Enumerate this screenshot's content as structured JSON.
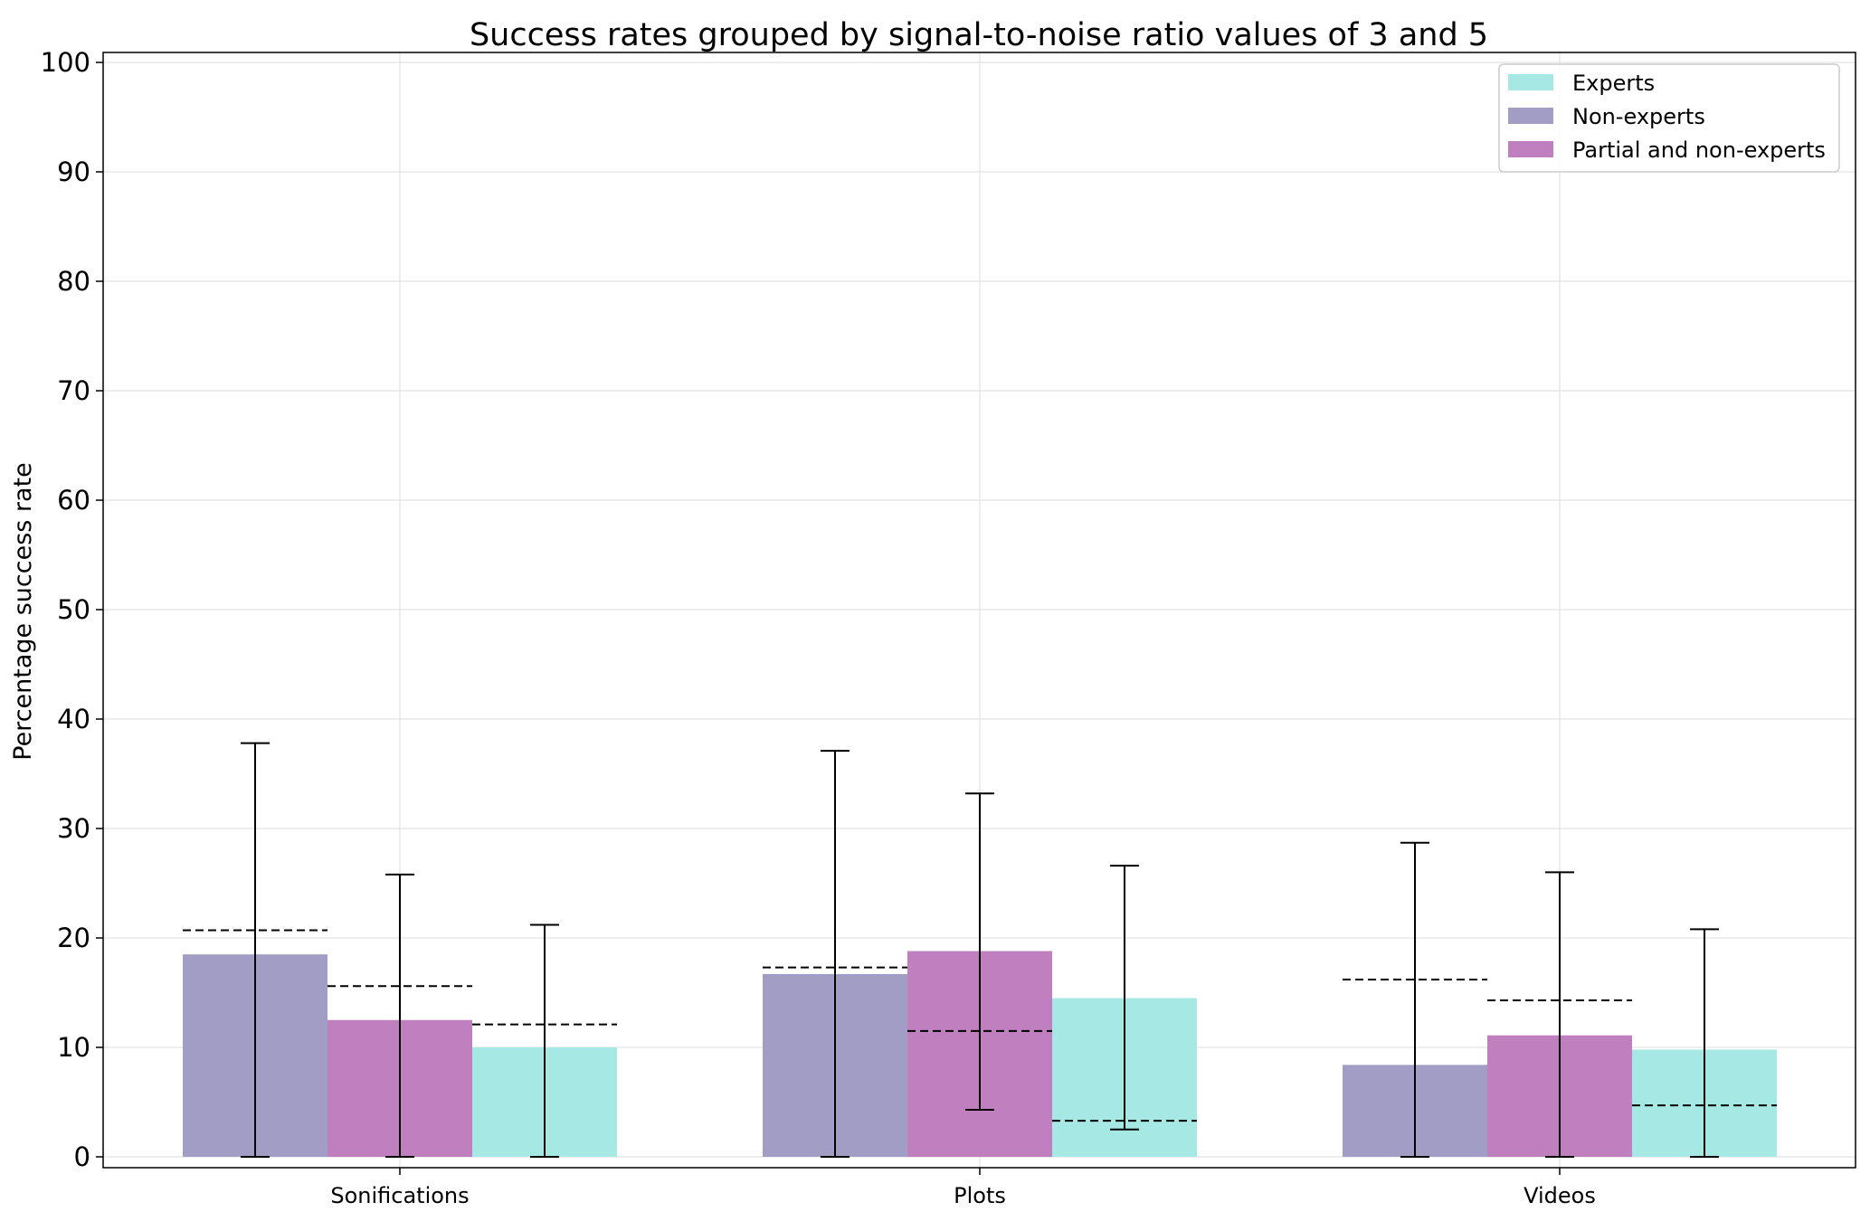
{
  "chart_data": {
    "type": "bar",
    "title": "Success rates grouped by signal-to-noise ratio values of 3 and 5",
    "xlabel": "",
    "ylabel": "Percentage success rate",
    "ylim": [
      -1,
      101
    ],
    "yticks": [
      0,
      10,
      20,
      30,
      40,
      50,
      60,
      70,
      80,
      90,
      100
    ],
    "grid": true,
    "legend_position": "top-right",
    "categories": [
      "Sonifications",
      "Plots",
      "Videos"
    ],
    "series": [
      {
        "name": "Non-experts",
        "color": "#a29dc4",
        "values": [
          18.5,
          16.7,
          8.4
        ],
        "err_low": [
          0,
          0,
          0
        ],
        "err_high": [
          37.8,
          37.1,
          28.7
        ],
        "reference": [
          20.7,
          17.3,
          16.2
        ]
      },
      {
        "name": "Partial and non-experts",
        "color": "#c07fbf",
        "values": [
          12.5,
          18.8,
          11.1
        ],
        "err_low": [
          0,
          4.3,
          0
        ],
        "err_high": [
          25.8,
          33.2,
          26.0
        ],
        "reference": [
          15.6,
          11.5,
          14.3
        ]
      },
      {
        "name": "Experts",
        "color": "#a6e8e4",
        "values": [
          10.0,
          14.5,
          9.8
        ],
        "err_low": [
          0,
          2.5,
          0
        ],
        "err_high": [
          21.2,
          26.6,
          20.8
        ],
        "reference": [
          12.1,
          3.3,
          4.7
        ]
      }
    ],
    "legend_order": [
      "Experts",
      "Non-experts",
      "Partial and non-experts"
    ]
  }
}
